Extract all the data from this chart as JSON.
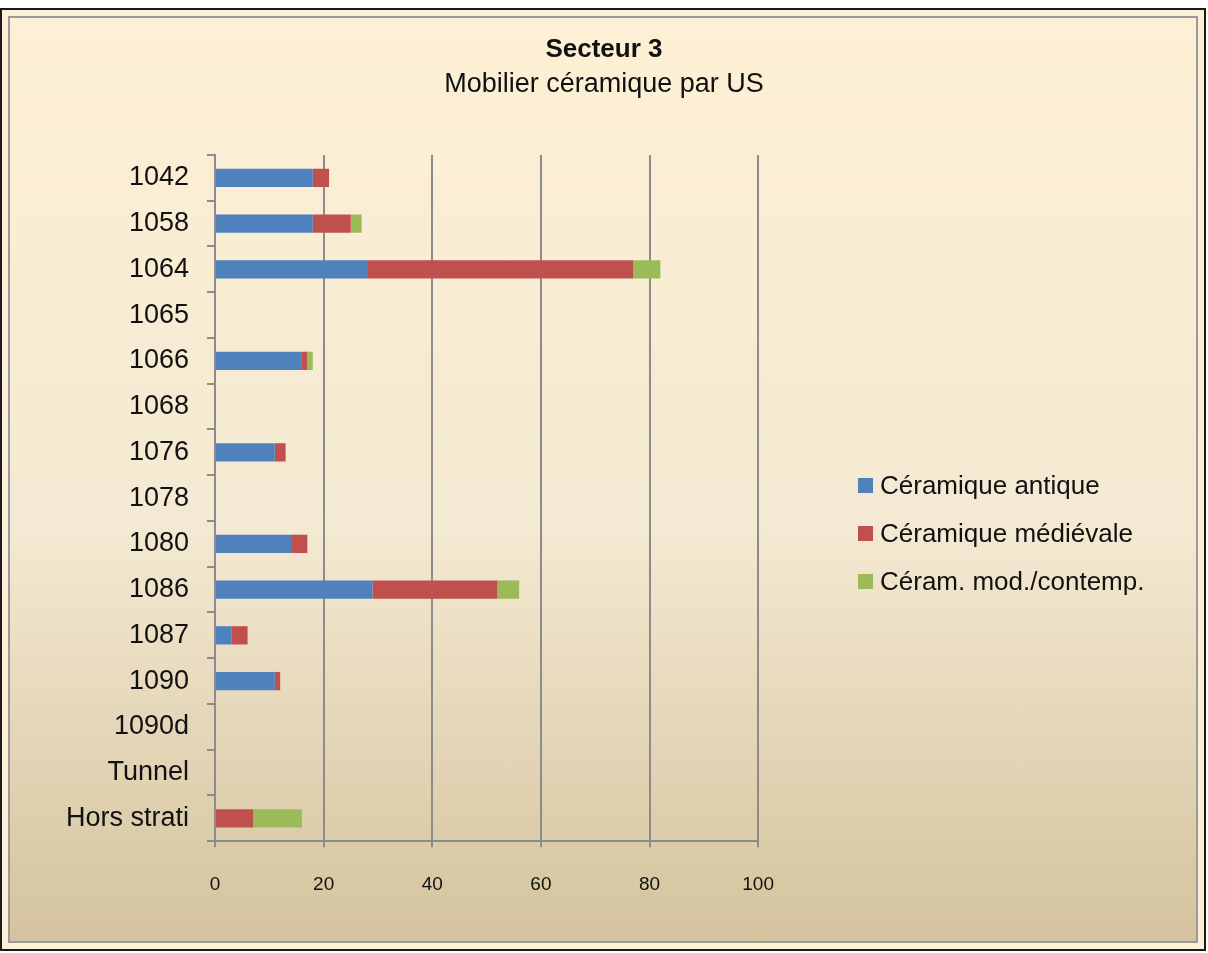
{
  "chart_data": {
    "type": "bar",
    "orientation": "horizontal",
    "stacked": true,
    "title": "Secteur 3",
    "subtitle": "Mobilier céramique par US",
    "categories": [
      "1042",
      "1058",
      "1064",
      "1065",
      "1066",
      "1068",
      "1076",
      "1078",
      "1080",
      "1086",
      "1087",
      "1090",
      "1090d",
      "Tunnel",
      "Hors strati"
    ],
    "series": [
      {
        "name": "Céramique antique",
        "color": "#4f81bd",
        "values": [
          18,
          18,
          28,
          0,
          16,
          0,
          11,
          0,
          14,
          29,
          3,
          11,
          0,
          0,
          0
        ]
      },
      {
        "name": "Céramique médiévale",
        "color": "#c0504d",
        "values": [
          3,
          7,
          49,
          0,
          1,
          0,
          2,
          0,
          3,
          23,
          3,
          1,
          0,
          0,
          7
        ]
      },
      {
        "name": "Céram. mod./contemp.",
        "color": "#9bbb59",
        "values": [
          0,
          2,
          5,
          0,
          1,
          0,
          0,
          0,
          0,
          4,
          0,
          0,
          0,
          0,
          9
        ]
      }
    ],
    "xlim": [
      0,
      100
    ],
    "xticks": [
      0,
      20,
      40,
      60,
      80,
      100
    ],
    "grid": "x",
    "legend": "right"
  }
}
